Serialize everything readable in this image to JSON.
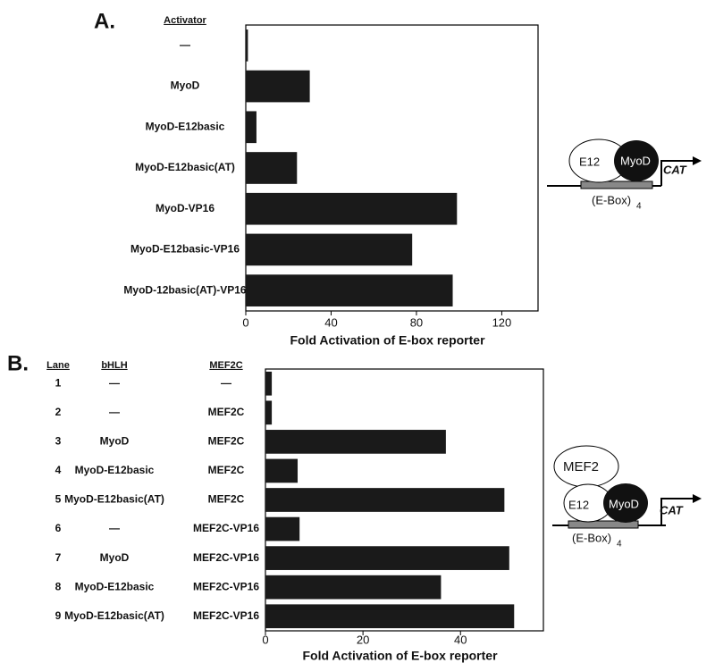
{
  "chart_data": [
    {
      "type": "bar",
      "orientation": "horizontal",
      "panel_label": "A.",
      "category_header": "Activator",
      "categories": [
        "—",
        "MyoD",
        "MyoD-E12basic",
        "MyoD-E12basic(AT)",
        "MyoD-VP16",
        "MyoD-E12basic-VP16",
        "MyoD-12basic(AT)-VP16"
      ],
      "values": [
        1,
        30,
        5,
        24,
        99,
        78,
        97
      ],
      "color": "#1a1a1a",
      "xlabel": "Fold Activation of E-box reporter",
      "xlim": [
        0,
        137
      ],
      "xticks": [
        0,
        40,
        80,
        120
      ],
      "grid": false
    },
    {
      "type": "bar",
      "orientation": "horizontal",
      "panel_label": "B.",
      "category_header": "Lane",
      "categories": [
        "1",
        "2",
        "3",
        "4",
        "5",
        "6",
        "7",
        "8",
        "9"
      ],
      "columns": [
        {
          "header": "bHLH",
          "labels": [
            "—",
            "—",
            "MyoD",
            "MyoD-E12basic",
            "MyoD-E12basic(AT)",
            "—",
            "MyoD",
            "MyoD-E12basic",
            "MyoD-E12basic(AT)"
          ]
        },
        {
          "header": "MEF2C",
          "labels": [
            "—",
            "MEF2C",
            "MEF2C",
            "MEF2C",
            "MEF2C",
            "MEF2C-VP16",
            "MEF2C-VP16",
            "MEF2C-VP16",
            "MEF2C-VP16"
          ]
        }
      ],
      "values": [
        1.3,
        1.3,
        37,
        6.6,
        49,
        7,
        50,
        36,
        51
      ],
      "color": "#1a1a1a",
      "xlabel": "Fold Activation of E-box reporter",
      "xlim": [
        0,
        57
      ],
      "xticks": [
        0,
        20,
        40
      ],
      "grid": false
    }
  ],
  "diagrams": [
    {
      "partner": "E12",
      "activator": "MyoD",
      "reporter": "CAT",
      "element": "(E-Box)",
      "element_subscript": "4"
    },
    {
      "cofactor": "MEF2",
      "partner": "E12",
      "activator": "MyoD",
      "reporter": "CAT",
      "element": "(E-Box)",
      "element_subscript": "4"
    }
  ]
}
